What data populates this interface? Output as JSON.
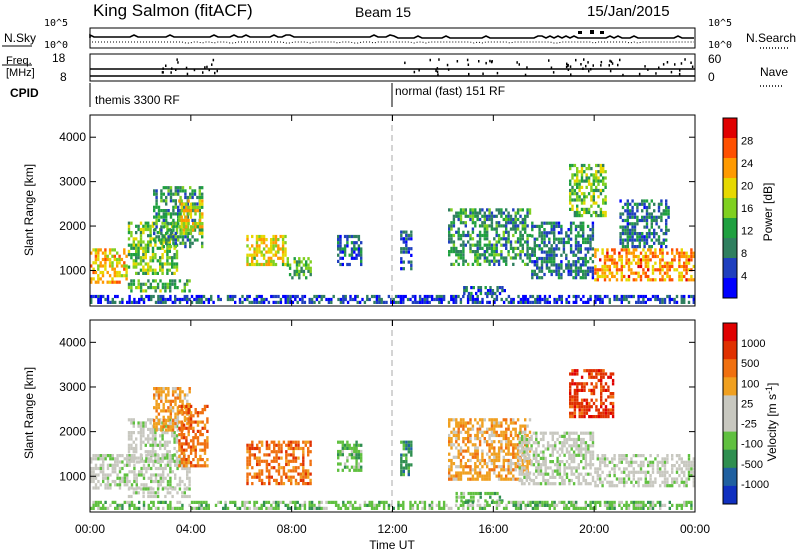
{
  "header": {
    "station": "King Salmon (fitACF)",
    "beam": "Beam 15",
    "date": "15/Jan/2015"
  },
  "strip": {
    "nsky_label": "N.Sky",
    "nsky_ticks": [
      "10^5",
      "10^0"
    ],
    "nsearch_label": "N.Search",
    "nsearch_ticks": [
      "10^5",
      "10^0"
    ],
    "freq_label_1": "Freq.",
    "freq_label_2": "[MHz]",
    "freq_ticks": [
      "18",
      "8"
    ],
    "nave_label": "Nave",
    "nave_ticks": [
      "60",
      "0"
    ],
    "cpid_label": "CPID",
    "cpid_segments": [
      "themis 3300 RF",
      "normal (fast) 151 RF"
    ]
  },
  "colors": {
    "power_scale": [
      "#0000ff",
      "#1f3fbf",
      "#2f7f5f",
      "#1fa040",
      "#7fd020",
      "#e6d800",
      "#ff9a00",
      "#ff5000",
      "#e00000"
    ],
    "velocity_scale": [
      "#1030c0",
      "#2060a0",
      "#2f8f50",
      "#60c040",
      "#c8c8c0",
      "#c8c8c0",
      "#f0a020",
      "#f07010",
      "#e03000",
      "#e00000"
    ]
  },
  "chart_data": [
    {
      "type": "heatmap",
      "title": "",
      "xlabel": "Time UT",
      "ylabel": "Slant Range [km]",
      "x_ticks": [
        "00:00",
        "04:00",
        "08:00",
        "12:00",
        "16:00",
        "20:00",
        "00:00"
      ],
      "xlim": [
        0,
        24
      ],
      "ylim": [
        200,
        4500
      ],
      "y_ticks": [
        "4000",
        "3000",
        "2000",
        "1000"
      ],
      "colorbar_label": "Power [dB]",
      "colorbar_ticks": [
        "28",
        "24",
        "20",
        "16",
        "12",
        "8",
        "4"
      ],
      "colorbar_range": [
        0,
        30
      ],
      "grid": false,
      "regions": [
        {
          "t0": 0.0,
          "t1": 1.5,
          "r0": 700,
          "r1": 1500,
          "level": 20
        },
        {
          "t0": 1.5,
          "t1": 3.5,
          "r0": 900,
          "r1": 2100,
          "level": 14
        },
        {
          "t0": 2.5,
          "t1": 4.5,
          "r0": 1500,
          "r1": 2900,
          "level": 10
        },
        {
          "t0": 3.5,
          "t1": 4.5,
          "r0": 1800,
          "r1": 2600,
          "level": 18
        },
        {
          "t0": 1.5,
          "t1": 4.0,
          "r0": 500,
          "r1": 800,
          "level": 12
        },
        {
          "t0": 6.2,
          "t1": 7.8,
          "r0": 1100,
          "r1": 1800,
          "level": 18
        },
        {
          "t0": 7.8,
          "t1": 8.8,
          "r0": 800,
          "r1": 1300,
          "level": 12
        },
        {
          "t0": 9.8,
          "t1": 10.8,
          "r0": 1100,
          "r1": 1800,
          "level": 6
        },
        {
          "t0": 12.3,
          "t1": 12.8,
          "r0": 1000,
          "r1": 1900,
          "level": 5
        },
        {
          "t0": 14.2,
          "t1": 17.5,
          "r0": 1100,
          "r1": 2400,
          "level": 10
        },
        {
          "t0": 14.8,
          "t1": 16.5,
          "r0": 450,
          "r1": 650,
          "level": 6
        },
        {
          "t0": 17.5,
          "t1": 20.0,
          "r0": 800,
          "r1": 2100,
          "level": 8
        },
        {
          "t0": 19.0,
          "t1": 20.5,
          "r0": 2200,
          "r1": 3400,
          "level": 14
        },
        {
          "t0": 20.0,
          "t1": 24.0,
          "r0": 750,
          "r1": 1500,
          "level": 22
        },
        {
          "t0": 21.0,
          "t1": 23.0,
          "r0": 1500,
          "r1": 2600,
          "level": 8
        },
        {
          "t0": 0.0,
          "t1": 24.0,
          "r0": 250,
          "r1": 450,
          "level": 5
        }
      ]
    },
    {
      "type": "heatmap",
      "title": "",
      "xlabel": "Time UT",
      "ylabel": "Slant Range [km]",
      "x_ticks": [
        "00:00",
        "04:00",
        "08:00",
        "12:00",
        "16:00",
        "20:00",
        "00:00"
      ],
      "xlim": [
        0,
        24
      ],
      "ylim": [
        200,
        4500
      ],
      "y_ticks": [
        "4000",
        "3000",
        "2000",
        "1000"
      ],
      "colorbar_label": "Velocity [m s^-1]",
      "colorbar_ticks": [
        "1000",
        "500",
        "100",
        "25",
        "-25",
        "-100",
        "-500",
        "-1000"
      ],
      "grid": false,
      "regions": [
        {
          "t0": 0.0,
          "t1": 4.0,
          "r0": 700,
          "r1": 1500,
          "class": 4
        },
        {
          "t0": 1.5,
          "t1": 3.5,
          "r0": 1300,
          "r1": 2300,
          "class": 4
        },
        {
          "t0": 2.5,
          "t1": 4.0,
          "r0": 2000,
          "r1": 3000,
          "class": 6
        },
        {
          "t0": 3.5,
          "t1": 4.7,
          "r0": 1200,
          "r1": 2600,
          "class": 7
        },
        {
          "t0": 1.5,
          "t1": 4.0,
          "r0": 500,
          "r1": 750,
          "class": 4
        },
        {
          "t0": 6.2,
          "t1": 8.8,
          "r0": 800,
          "r1": 1800,
          "class": 7
        },
        {
          "t0": 9.8,
          "t1": 10.8,
          "r0": 1100,
          "r1": 1800,
          "class": 3
        },
        {
          "t0": 12.3,
          "t1": 12.8,
          "r0": 1000,
          "r1": 1800,
          "class": 2
        },
        {
          "t0": 14.2,
          "t1": 17.5,
          "r0": 900,
          "r1": 2300,
          "class": 6
        },
        {
          "t0": 14.5,
          "t1": 16.5,
          "r0": 400,
          "r1": 650,
          "class": 3
        },
        {
          "t0": 17.0,
          "t1": 20.0,
          "r0": 800,
          "r1": 2000,
          "class": 4
        },
        {
          "t0": 19.0,
          "t1": 20.8,
          "r0": 2300,
          "r1": 3400,
          "class": 8
        },
        {
          "t0": 20.0,
          "t1": 24.0,
          "r0": 750,
          "r1": 1500,
          "class": 4
        },
        {
          "t0": 0.0,
          "t1": 24.0,
          "r0": 250,
          "r1": 450,
          "class": 3
        }
      ]
    }
  ]
}
